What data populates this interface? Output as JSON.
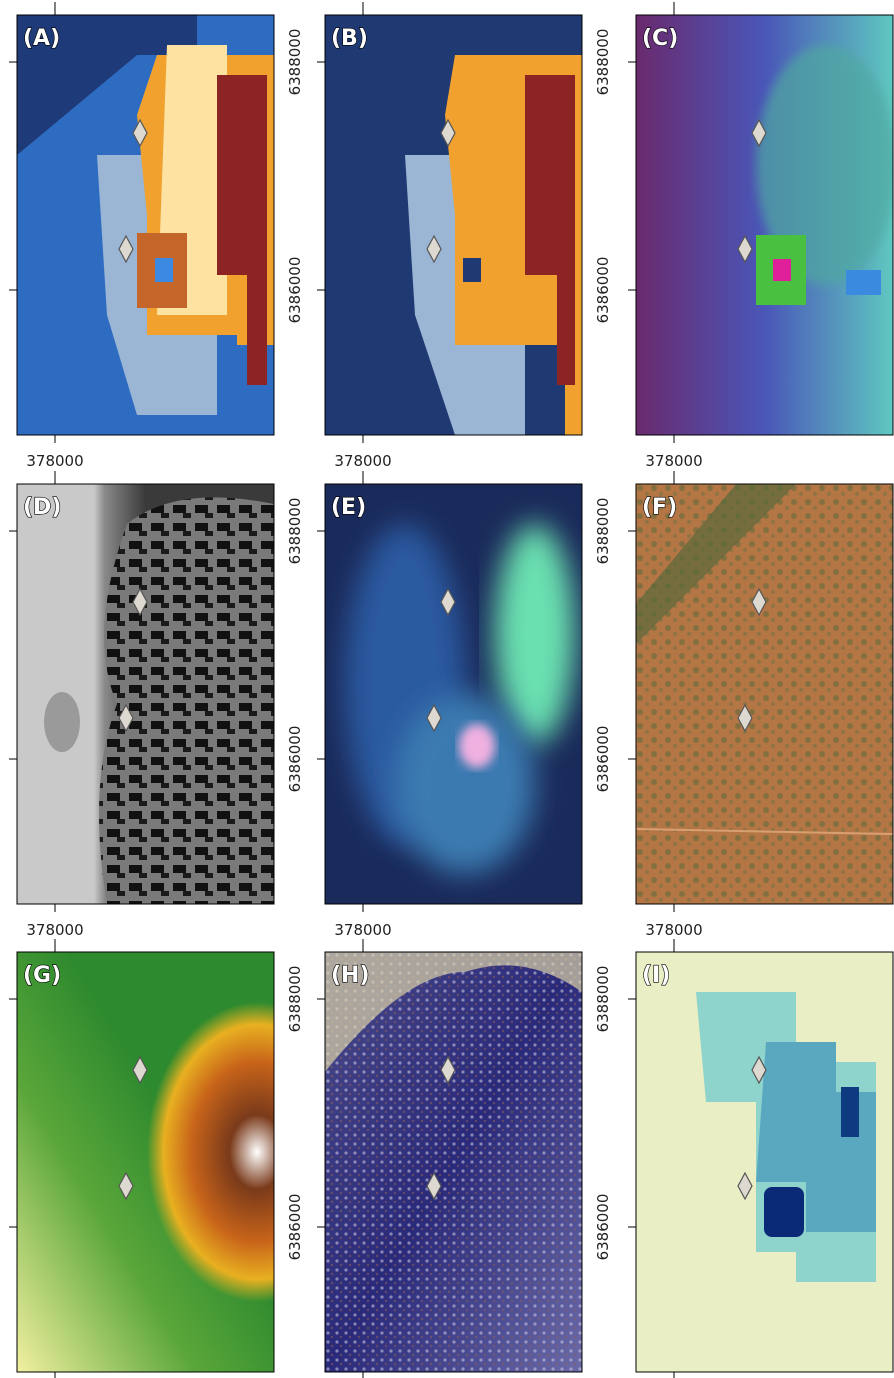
{
  "panels": [
    {
      "label": "(A)",
      "x_tick": "378000",
      "y_ticks": [
        "6388000",
        "6386000"
      ]
    },
    {
      "label": "(B)",
      "x_tick": "378000",
      "y_ticks": [
        "6388000",
        "6386000"
      ]
    },
    {
      "label": "(C)",
      "x_tick": "378000"
    },
    {
      "label": "(D)",
      "x_tick": "378000",
      "y_ticks": [
        "6388000",
        "6386000"
      ]
    },
    {
      "label": "(E)",
      "x_tick": "378000",
      "y_ticks": [
        "6388000",
        "6386000"
      ]
    },
    {
      "label": "(F)",
      "x_tick": "378000"
    },
    {
      "label": "(G)",
      "y_ticks": [
        "6388000",
        "6386000"
      ]
    },
    {
      "label": "(H)",
      "y_ticks": [
        "6388000",
        "6386000"
      ]
    },
    {
      "label": "(I)"
    }
  ]
}
